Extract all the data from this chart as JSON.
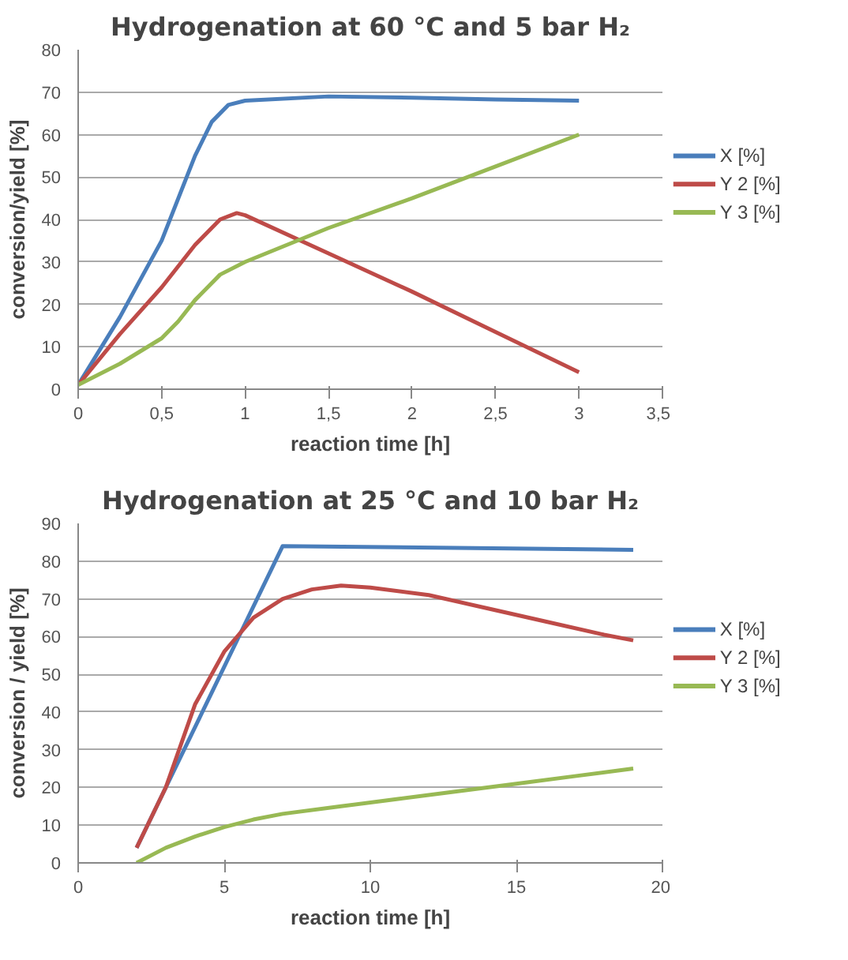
{
  "chart_data": [
    {
      "type": "line",
      "title": "Hydrogenation at 60 °C and 5 bar H₂",
      "xlabel": "reaction time [h]",
      "ylabel": "conversion/yield [%]",
      "xlim": [
        0,
        3.5
      ],
      "xticks": [
        0,
        {
          "value": 0.5,
          "label": "0,5"
        },
        1,
        {
          "value": 1.5,
          "label": "1,5"
        },
        2,
        {
          "value": 2.5,
          "label": "2,5"
        },
        3,
        {
          "value": 3.5,
          "label": "3,5"
        }
      ],
      "ylim": [
        0,
        80
      ],
      "yticks": [
        0,
        10,
        20,
        30,
        40,
        50,
        60,
        70,
        80
      ],
      "grid": "y",
      "legend": "right",
      "series": [
        {
          "name": "X [%]",
          "color": "#4a7ebb",
          "x": [
            0,
            0.25,
            0.5,
            0.6,
            0.7,
            0.8,
            0.9,
            1,
            1.5,
            2,
            2.5,
            3
          ],
          "values": [
            1,
            17,
            35,
            45,
            55,
            63,
            67,
            68,
            69,
            68.7,
            68.3,
            68
          ]
        },
        {
          "name": "Y 2 [%]",
          "color": "#be4b48",
          "x": [
            0,
            0.25,
            0.5,
            0.7,
            0.85,
            0.95,
            1,
            1.5,
            2,
            2.5,
            3
          ],
          "values": [
            1,
            13,
            24,
            34,
            40,
            41.5,
            41,
            32,
            23,
            13.5,
            4
          ]
        },
        {
          "name": "Y 3 [%]",
          "color": "#98b954",
          "x": [
            0,
            0.25,
            0.5,
            0.6,
            0.7,
            0.85,
            1,
            1.5,
            2,
            2.5,
            3
          ],
          "values": [
            1,
            6,
            12,
            16,
            21,
            27,
            30,
            38,
            45,
            52.5,
            60
          ]
        }
      ]
    },
    {
      "type": "line",
      "title": "Hydrogenation at 25 °C and 10 bar H₂",
      "xlabel": "reaction time [h]",
      "ylabel": "conversion / yield [%]",
      "xlim": [
        0,
        20
      ],
      "xticks": [
        0,
        5,
        10,
        15,
        20
      ],
      "ylim": [
        0,
        90
      ],
      "yticks": [
        0,
        10,
        20,
        30,
        40,
        50,
        60,
        70,
        80,
        90
      ],
      "grid": "y",
      "legend": "right",
      "series": [
        {
          "name": "X [%]",
          "color": "#4a7ebb",
          "x": [
            2,
            7,
            19
          ],
          "values": [
            4,
            84,
            83
          ]
        },
        {
          "name": "Y 2 [%]",
          "color": "#be4b48",
          "x": [
            2,
            3,
            4,
            5,
            6,
            7,
            8,
            9,
            10,
            12,
            14,
            16,
            18,
            19
          ],
          "values": [
            4,
            20,
            42,
            56,
            65,
            70,
            72.5,
            73.5,
            73,
            71,
            67.5,
            64,
            60.5,
            59
          ]
        },
        {
          "name": "Y 3 [%]",
          "color": "#98b954",
          "x": [
            2,
            3,
            4,
            5,
            6,
            7,
            9,
            11,
            13,
            15,
            17,
            19
          ],
          "values": [
            0,
            4,
            7,
            9.5,
            11.5,
            13,
            15,
            17,
            19,
            21,
            23,
            25
          ]
        }
      ]
    }
  ]
}
